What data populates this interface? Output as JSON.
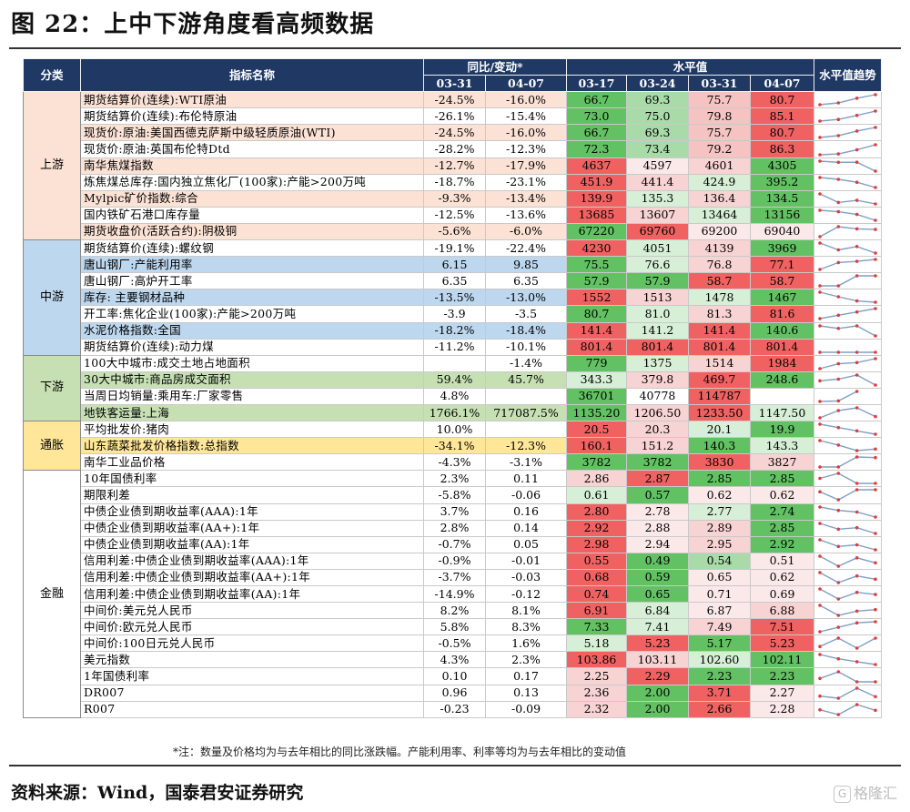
{
  "title": "图 22：上中下游角度看高频数据",
  "header": {
    "category": "分类",
    "indicator": "指标名称",
    "yoy_group": "同比/变动*",
    "level_group": "水平值",
    "trend": "水平值趋势",
    "yoy_dates": [
      "03-31",
      "04-07"
    ],
    "level_dates": [
      "03-17",
      "03-24",
      "03-31",
      "04-07"
    ]
  },
  "colors": {
    "header_bg": "#1f3864",
    "header_text": "#ffffff",
    "spark_line": "#7f9fc4",
    "spark_dot": "#e23c3c"
  },
  "groups": [
    {
      "name": "上游",
      "color": "#fbe2d5",
      "rows": [
        {
          "name": "期货结算价(连续):WTI原油",
          "yoy": [
            "-24.5%",
            "-16.0%"
          ],
          "lvl": [
            "66.7",
            "69.3",
            "75.7",
            "80.7"
          ],
          "lvlc": [
            "#62c162",
            "#a9dba9",
            "#f6c3c3",
            "#f06262"
          ],
          "hl": true
        },
        {
          "name": "期货结算价(连续):布伦特原油",
          "yoy": [
            "-26.1%",
            "-15.4%"
          ],
          "lvl": [
            "73.0",
            "75.0",
            "79.8",
            "85.1"
          ],
          "lvlc": [
            "#62c162",
            "#a9dba9",
            "#f6c3c3",
            "#f06262"
          ],
          "hl": false
        },
        {
          "name": "现货价:原油:美国西德克萨斯中级轻质原油(WTI)",
          "yoy": [
            "-24.5%",
            "-16.0%"
          ],
          "lvl": [
            "66.7",
            "69.3",
            "75.7",
            "80.7"
          ],
          "lvlc": [
            "#62c162",
            "#a9dba9",
            "#f6c3c3",
            "#f06262"
          ],
          "hl": true
        },
        {
          "name": "现货价:原油:英国布伦特Dtd",
          "yoy": [
            "-28.2%",
            "-12.3%"
          ],
          "lvl": [
            "72.3",
            "73.4",
            "79.2",
            "86.3"
          ],
          "lvlc": [
            "#62c162",
            "#a9dba9",
            "#f6c3c3",
            "#f06262"
          ],
          "hl": false
        },
        {
          "name": "南华焦煤指数",
          "yoy": [
            "-12.7%",
            "-17.9%"
          ],
          "lvl": [
            "4637",
            "4597",
            "4601",
            "4305"
          ],
          "lvlc": [
            "#f06262",
            "#fbe9e9",
            "#f8d3d3",
            "#62c162"
          ],
          "hl": true
        },
        {
          "name": "炼焦煤总库存:国内独立焦化厂(100家):产能>200万吨",
          "yoy": [
            "-18.7%",
            "-23.1%"
          ],
          "lvl": [
            "451.9",
            "441.4",
            "424.9",
            "395.2"
          ],
          "lvlc": [
            "#f06262",
            "#f8d3d3",
            "#d6efd6",
            "#62c162"
          ],
          "hl": false
        },
        {
          "name": "Mylpic矿价指数:综合",
          "yoy": [
            "-9.3%",
            "-13.4%"
          ],
          "lvl": [
            "139.9",
            "135.3",
            "136.4",
            "134.5"
          ],
          "lvlc": [
            "#f06262",
            "#d6efd6",
            "#f8d3d3",
            "#62c162"
          ],
          "hl": true
        },
        {
          "name": "国内铁矿石港口库存量",
          "yoy": [
            "-12.5%",
            "-13.6%"
          ],
          "lvl": [
            "13685",
            "13607",
            "13464",
            "13156"
          ],
          "lvlc": [
            "#f06262",
            "#f8d3d3",
            "#d6efd6",
            "#62c162"
          ],
          "hl": false
        },
        {
          "name": "期货收盘价(活跃合约):阴极铜",
          "yoy": [
            "-5.6%",
            "-6.0%"
          ],
          "lvl": [
            "67220",
            "69760",
            "69200",
            "69040"
          ],
          "lvlc": [
            "#62c162",
            "#f06262",
            "#fbe9e9",
            "#fbe9e9"
          ],
          "hl": true
        }
      ]
    },
    {
      "name": "中游",
      "color": "#bdd7ee",
      "rows": [
        {
          "name": "期货结算价(连续):螺纹钢",
          "yoy": [
            "-19.1%",
            "-22.4%"
          ],
          "lvl": [
            "4230",
            "4051",
            "4139",
            "3969"
          ],
          "lvlc": [
            "#f06262",
            "#d6efd6",
            "#f8d3d3",
            "#62c162"
          ],
          "hl": false
        },
        {
          "name": "唐山钢厂:产能利用率",
          "yoy": [
            "6.15",
            "9.85"
          ],
          "lvl": [
            "75.5",
            "76.6",
            "76.8",
            "77.1"
          ],
          "lvlc": [
            "#62c162",
            "#d6efd6",
            "#f8d3d3",
            "#f06262"
          ],
          "hl": true
        },
        {
          "name": "唐山钢厂:高炉开工率",
          "yoy": [
            "6.35",
            "6.35"
          ],
          "lvl": [
            "57.9",
            "57.9",
            "58.7",
            "58.7"
          ],
          "lvlc": [
            "#62c162",
            "#62c162",
            "#f06262",
            "#f06262"
          ],
          "hl": false
        },
        {
          "name": "库存: 主要钢材品种",
          "yoy": [
            "-13.5%",
            "-13.0%"
          ],
          "lvl": [
            "1552",
            "1513",
            "1478",
            "1467"
          ],
          "lvlc": [
            "#f06262",
            "#f8d3d3",
            "#d6efd6",
            "#62c162"
          ],
          "hl": true
        },
        {
          "name": "开工率:焦化企业(100家):产能>200万吨",
          "yoy": [
            "-3.9",
            "-3.5"
          ],
          "lvl": [
            "80.7",
            "81.0",
            "81.3",
            "81.6"
          ],
          "lvlc": [
            "#62c162",
            "#d6efd6",
            "#f8d3d3",
            "#f06262"
          ],
          "hl": false
        },
        {
          "name": "水泥价格指数:全国",
          "yoy": [
            "-18.2%",
            "-18.4%"
          ],
          "lvl": [
            "141.4",
            "141.2",
            "141.4",
            "140.6"
          ],
          "lvlc": [
            "#f06262",
            "#d6efd6",
            "#f06262",
            "#62c162"
          ],
          "hl": true
        },
        {
          "name": "期货结算价(连续):动力煤",
          "yoy": [
            "-11.2%",
            "-10.1%"
          ],
          "lvl": [
            "801.4",
            "801.4",
            "801.4",
            "801.4"
          ],
          "lvlc": [
            "#f06262",
            "#f06262",
            "#f06262",
            "#f06262"
          ],
          "hl": false
        }
      ]
    },
    {
      "name": "下游",
      "color": "#c6e0b4",
      "rows": [
        {
          "name": "100大中城市:成交土地占地面积",
          "yoy": [
            "",
            "-1.4%"
          ],
          "lvl": [
            "779",
            "1375",
            "1514",
            "1984"
          ],
          "lvlc": [
            "#62c162",
            "#d6efd6",
            "#f8d3d3",
            "#f06262"
          ],
          "hl": false
        },
        {
          "name": "30大中城市:商品房成交面积",
          "yoy": [
            "59.4%",
            "45.7%"
          ],
          "lvl": [
            "343.3",
            "379.8",
            "469.7",
            "248.6"
          ],
          "lvlc": [
            "#d6efd6",
            "#f8d3d3",
            "#f06262",
            "#62c162"
          ],
          "hl": true
        },
        {
          "name": "当周日均销量:乘用车:厂家零售",
          "yoy": [
            "4.8%",
            ""
          ],
          "lvl": [
            "36701",
            "40778",
            "114787",
            ""
          ],
          "lvlc": [
            "#62c162",
            "#ffffff",
            "#f06262",
            "#ffffff"
          ],
          "hl": false
        },
        {
          "name": "地铁客运量:上海",
          "yoy": [
            "1766.1%",
            "717087.5%"
          ],
          "lvl": [
            "1135.20",
            "1206.50",
            "1233.50",
            "1147.50"
          ],
          "lvlc": [
            "#62c162",
            "#f8d3d3",
            "#f06262",
            "#d6efd6"
          ],
          "hl": true
        }
      ]
    },
    {
      "name": "通胀",
      "color": "#ffe699",
      "rows": [
        {
          "name": "平均批发价:猪肉",
          "yoy": [
            "10.0%",
            ""
          ],
          "lvl": [
            "20.5",
            "20.3",
            "20.1",
            "19.9"
          ],
          "lvlc": [
            "#f06262",
            "#f8d3d3",
            "#d6efd6",
            "#62c162"
          ],
          "hl": false
        },
        {
          "name": "山东蔬菜批发价格指数:总指数",
          "yoy": [
            "-34.1%",
            "-12.3%"
          ],
          "lvl": [
            "160.1",
            "151.2",
            "140.3",
            "143.3"
          ],
          "lvlc": [
            "#f06262",
            "#f8d3d3",
            "#62c162",
            "#d6efd6"
          ],
          "hl": true
        },
        {
          "name": "南华工业品价格",
          "yoy": [
            "-4.3%",
            "-3.1%"
          ],
          "lvl": [
            "3782",
            "3782",
            "3830",
            "3827"
          ],
          "lvlc": [
            "#62c162",
            "#62c162",
            "#f06262",
            "#f8d3d3"
          ],
          "hl": false
        }
      ]
    },
    {
      "name": "金融",
      "color": "#ffffff",
      "rows": [
        {
          "name": "10年国债利率",
          "yoy": [
            "2.3%",
            "0.11"
          ],
          "lvl": [
            "2.86",
            "2.87",
            "2.85",
            "2.85"
          ],
          "lvlc": [
            "#f8d3d3",
            "#f06262",
            "#62c162",
            "#62c162"
          ],
          "hl": false
        },
        {
          "name": "期限利差",
          "yoy": [
            "-5.8%",
            "-0.06"
          ],
          "lvl": [
            "0.61",
            "0.57",
            "0.62",
            "0.62"
          ],
          "lvlc": [
            "#d6efd6",
            "#62c162",
            "#fbe9e9",
            "#fbe9e9"
          ],
          "hl": false
        },
        {
          "name": "中债企业债到期收益率(AAA):1年",
          "yoy": [
            "3.7%",
            "0.16"
          ],
          "lvl": [
            "2.80",
            "2.78",
            "2.77",
            "2.74"
          ],
          "lvlc": [
            "#f06262",
            "#fbe9e9",
            "#d6efd6",
            "#62c162"
          ],
          "hl": false
        },
        {
          "name": "中债企业债到期收益率(AA+):1年",
          "yoy": [
            "2.8%",
            "0.14"
          ],
          "lvl": [
            "2.92",
            "2.88",
            "2.89",
            "2.85"
          ],
          "lvlc": [
            "#f06262",
            "#fbe9e9",
            "#f8d3d3",
            "#62c162"
          ],
          "hl": false
        },
        {
          "name": "中债企业债到期收益率(AA):1年",
          "yoy": [
            "-0.7%",
            "0.05"
          ],
          "lvl": [
            "2.98",
            "2.94",
            "2.95",
            "2.92"
          ],
          "lvlc": [
            "#f06262",
            "#fbe9e9",
            "#f8d3d3",
            "#62c162"
          ],
          "hl": false
        },
        {
          "name": "信用利差:中债企业债到期收益率(AAA):1年",
          "yoy": [
            "-0.9%",
            "-0.01"
          ],
          "lvl": [
            "0.55",
            "0.49",
            "0.54",
            "0.51"
          ],
          "lvlc": [
            "#f06262",
            "#62c162",
            "#a9dba9",
            "#fbe9e9"
          ],
          "hl": false
        },
        {
          "name": "信用利差:中债企业债到期收益率(AA+):1年",
          "yoy": [
            "-3.7%",
            "-0.03"
          ],
          "lvl": [
            "0.68",
            "0.59",
            "0.65",
            "0.62"
          ],
          "lvlc": [
            "#f06262",
            "#62c162",
            "#fbe9e9",
            "#fbe9e9"
          ],
          "hl": false
        },
        {
          "name": "信用利差:中债企业债到期收益率(AA):1年",
          "yoy": [
            "-14.9%",
            "-0.12"
          ],
          "lvl": [
            "0.74",
            "0.65",
            "0.71",
            "0.69"
          ],
          "lvlc": [
            "#f06262",
            "#62c162",
            "#fbe9e9",
            "#fbe9e9"
          ],
          "hl": false
        },
        {
          "name": "中间价:美元兑人民币",
          "yoy": [
            "8.2%",
            "8.1%"
          ],
          "lvl": [
            "6.91",
            "6.84",
            "6.87",
            "6.88"
          ],
          "lvlc": [
            "#f06262",
            "#d6efd6",
            "#fbe9e9",
            "#f8d3d3"
          ],
          "hl": false
        },
        {
          "name": "中间价:欧元兑人民币",
          "yoy": [
            "5.8%",
            "8.3%"
          ],
          "lvl": [
            "7.33",
            "7.41",
            "7.49",
            "7.51"
          ],
          "lvlc": [
            "#62c162",
            "#d6efd6",
            "#f8d3d3",
            "#f06262"
          ],
          "hl": false
        },
        {
          "name": "中间价:100日元兑人民币",
          "yoy": [
            "-0.5%",
            "1.6%"
          ],
          "lvl": [
            "5.18",
            "5.23",
            "5.17",
            "5.23"
          ],
          "lvlc": [
            "#d6efd6",
            "#f06262",
            "#62c162",
            "#f06262"
          ],
          "hl": false
        },
        {
          "name": "美元指数",
          "yoy": [
            "4.3%",
            "2.3%"
          ],
          "lvl": [
            "103.86",
            "103.11",
            "102.60",
            "102.11"
          ],
          "lvlc": [
            "#f06262",
            "#f8d3d3",
            "#d6efd6",
            "#62c162"
          ],
          "hl": false
        },
        {
          "name": "1年国债利率",
          "yoy": [
            "0.10",
            "0.17"
          ],
          "lvl": [
            "2.25",
            "2.29",
            "2.23",
            "2.23"
          ],
          "lvlc": [
            "#f8d3d3",
            "#f06262",
            "#62c162",
            "#62c162"
          ],
          "hl": false
        },
        {
          "name": "DR007",
          "yoy": [
            "0.96",
            "0.13"
          ],
          "lvl": [
            "2.36",
            "2.00",
            "3.71",
            "2.27"
          ],
          "lvlc": [
            "#f8d3d3",
            "#62c162",
            "#f06262",
            "#fbe9e9"
          ],
          "hl": false
        },
        {
          "name": "R007",
          "yoy": [
            "-0.23",
            "-0.09"
          ],
          "lvl": [
            "2.32",
            "2.00",
            "2.66",
            "2.28"
          ],
          "lvlc": [
            "#f8d3d3",
            "#62c162",
            "#f06262",
            "#fbe9e9"
          ],
          "hl": false
        }
      ]
    }
  ],
  "footnote": "*注：数量及价格均为与去年相比的同比涨跌幅。产能利用率、利率等均为与去年相比的变动值",
  "source": "资料来源：Wind，国泰君安证券研究",
  "logo_text": "格隆汇"
}
